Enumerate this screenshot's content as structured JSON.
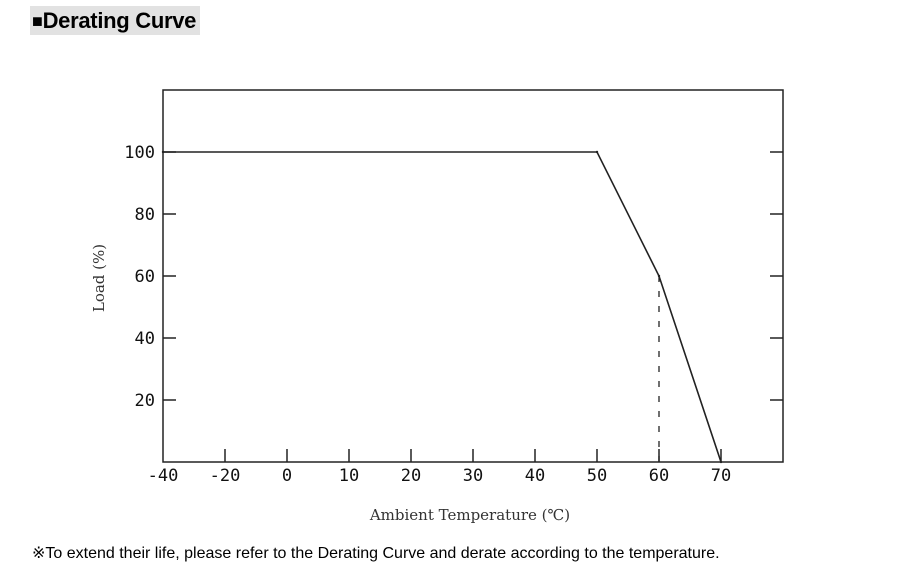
{
  "heading": {
    "bullet": "■",
    "title": "Derating Curve"
  },
  "footnote": "※To extend their life, please refer to the Derating Curve and derate according to the temperature.",
  "chart_data": {
    "type": "line",
    "title": "",
    "xlabel": "Ambient Temperature (℃)",
    "ylabel": "Load (%)",
    "xlim": [
      -40,
      60
    ],
    "ylim": [
      0,
      120
    ],
    "x_ticks": [
      -40,
      -20,
      0,
      10,
      20,
      30,
      40,
      50,
      60,
      70
    ],
    "x_tick_labels": [
      "-40",
      "-20",
      "0",
      "10",
      "20",
      "30",
      "40",
      "50",
      "60",
      "70"
    ],
    "y_ticks": [
      20,
      40,
      60,
      80,
      100
    ],
    "y_tick_labels": [
      "20",
      "40",
      "60",
      "80",
      "100"
    ],
    "grid": false,
    "series": [
      {
        "x": [
          -40,
          50,
          60,
          70
        ],
        "y": [
          100,
          100,
          60,
          0
        ]
      }
    ],
    "reference_lines": [
      {
        "style": "dashed",
        "x": [
          60,
          60
        ],
        "y": [
          60,
          0
        ]
      }
    ]
  }
}
